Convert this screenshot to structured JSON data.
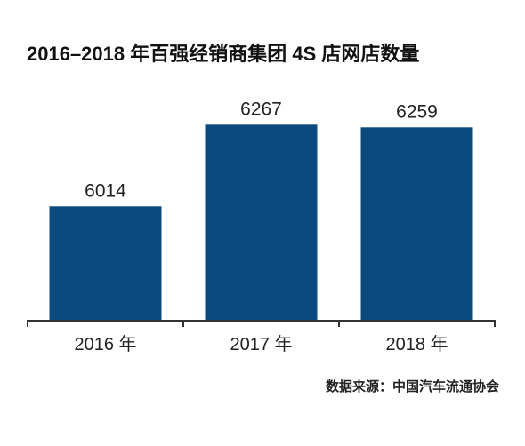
{
  "chart_data": {
    "type": "bar",
    "title": "2016–2018 年百强经销商集团 4S 店网店数量",
    "categories": [
      "2016 年",
      "2017 年",
      "2018 年"
    ],
    "values": [
      6014,
      6267,
      6259
    ],
    "ylim": [
      5660,
      6400
    ],
    "grid": false,
    "bar_color": "#0a4a7f"
  },
  "source": "数据来源：中国汽车流通协会"
}
